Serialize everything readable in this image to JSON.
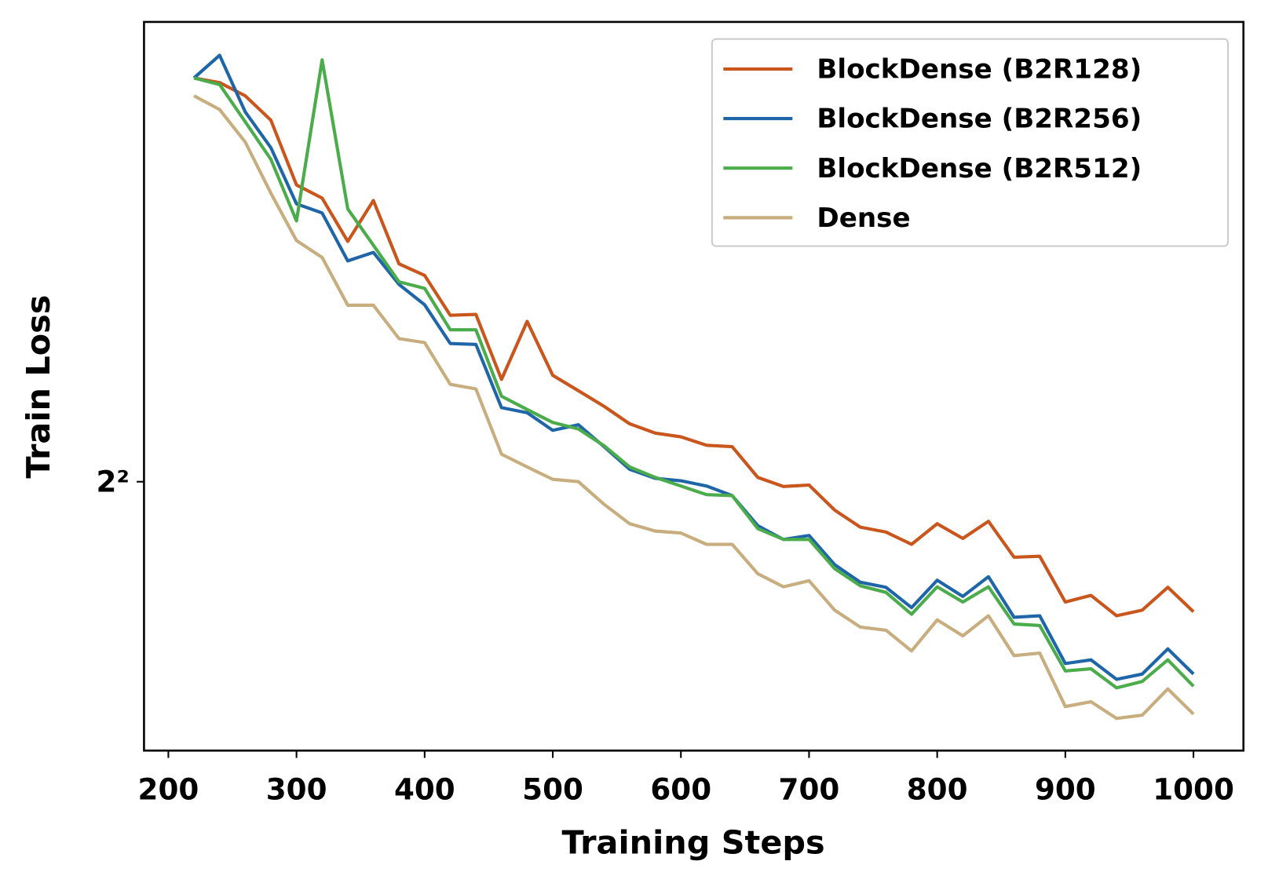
{
  "chart_data": {
    "type": "line",
    "x_label": "Training Steps",
    "y_label": "Train Loss",
    "x": [
      220,
      240,
      260,
      280,
      300,
      320,
      340,
      360,
      380,
      400,
      420,
      440,
      460,
      480,
      500,
      520,
      540,
      560,
      580,
      600,
      620,
      640,
      660,
      680,
      700,
      720,
      740,
      760,
      780,
      800,
      820,
      840,
      860,
      880,
      900,
      920,
      940,
      960,
      980,
      1000
    ],
    "series": [
      {
        "name": "BlockDense (B2R128)",
        "color": "#c9561d",
        "values": [
          4.941,
          4.929,
          4.895,
          4.833,
          4.672,
          4.64,
          4.536,
          4.634,
          4.483,
          4.456,
          4.364,
          4.366,
          4.22,
          4.35,
          4.229,
          4.195,
          4.161,
          4.123,
          4.103,
          4.095,
          4.077,
          4.074,
          4.009,
          3.99,
          3.993,
          3.941,
          3.906,
          3.896,
          3.871,
          3.913,
          3.883,
          3.918,
          3.845,
          3.847,
          3.756,
          3.769,
          3.729,
          3.74,
          3.785,
          3.737
        ]
      },
      {
        "name": "BlockDense (B2R256)",
        "color": "#1f66a8",
        "values": [
          4.941,
          5.0,
          4.854,
          4.764,
          4.626,
          4.604,
          4.49,
          4.51,
          4.435,
          4.388,
          4.3,
          4.298,
          4.158,
          4.147,
          4.109,
          4.121,
          4.074,
          4.026,
          4.007,
          4.002,
          3.991,
          3.971,
          3.909,
          3.881,
          3.889,
          3.83,
          3.795,
          3.785,
          3.745,
          3.799,
          3.767,
          3.806,
          3.726,
          3.729,
          3.637,
          3.644,
          3.607,
          3.617,
          3.665,
          3.617
        ]
      },
      {
        "name": "BlockDense (B2R512)",
        "color": "#4aac4a",
        "values": [
          4.941,
          4.924,
          4.829,
          4.735,
          4.585,
          4.988,
          4.614,
          4.527,
          4.441,
          4.426,
          4.331,
          4.331,
          4.183,
          4.154,
          4.126,
          4.112,
          4.076,
          4.031,
          4.009,
          3.991,
          3.973,
          3.971,
          3.903,
          3.881,
          3.881,
          3.822,
          3.788,
          3.775,
          3.732,
          3.786,
          3.756,
          3.786,
          3.713,
          3.71,
          3.623,
          3.627,
          3.591,
          3.603,
          3.644,
          3.594
        ]
      },
      {
        "name": "Dense",
        "color": "#c8ad7f",
        "values": [
          4.895,
          4.86,
          4.778,
          4.652,
          4.538,
          4.498,
          4.387,
          4.387,
          4.311,
          4.302,
          4.209,
          4.199,
          4.058,
          4.031,
          4.005,
          4.0,
          3.953,
          3.913,
          3.898,
          3.894,
          3.871,
          3.871,
          3.812,
          3.786,
          3.798,
          3.74,
          3.707,
          3.701,
          3.661,
          3.721,
          3.69,
          3.729,
          3.652,
          3.657,
          3.556,
          3.565,
          3.534,
          3.54,
          3.589,
          3.542
        ]
      }
    ],
    "xlim": [
      181,
      1039
    ],
    "xticks": [
      200,
      300,
      400,
      500,
      600,
      700,
      800,
      900,
      1000
    ],
    "ylim": [
      3.475,
      5.088
    ],
    "yticks": [
      {
        "value": 4,
        "label": "2²"
      }
    ],
    "y_scale": "log",
    "y_log_base": 2,
    "grid": false,
    "legend": "upper right"
  }
}
